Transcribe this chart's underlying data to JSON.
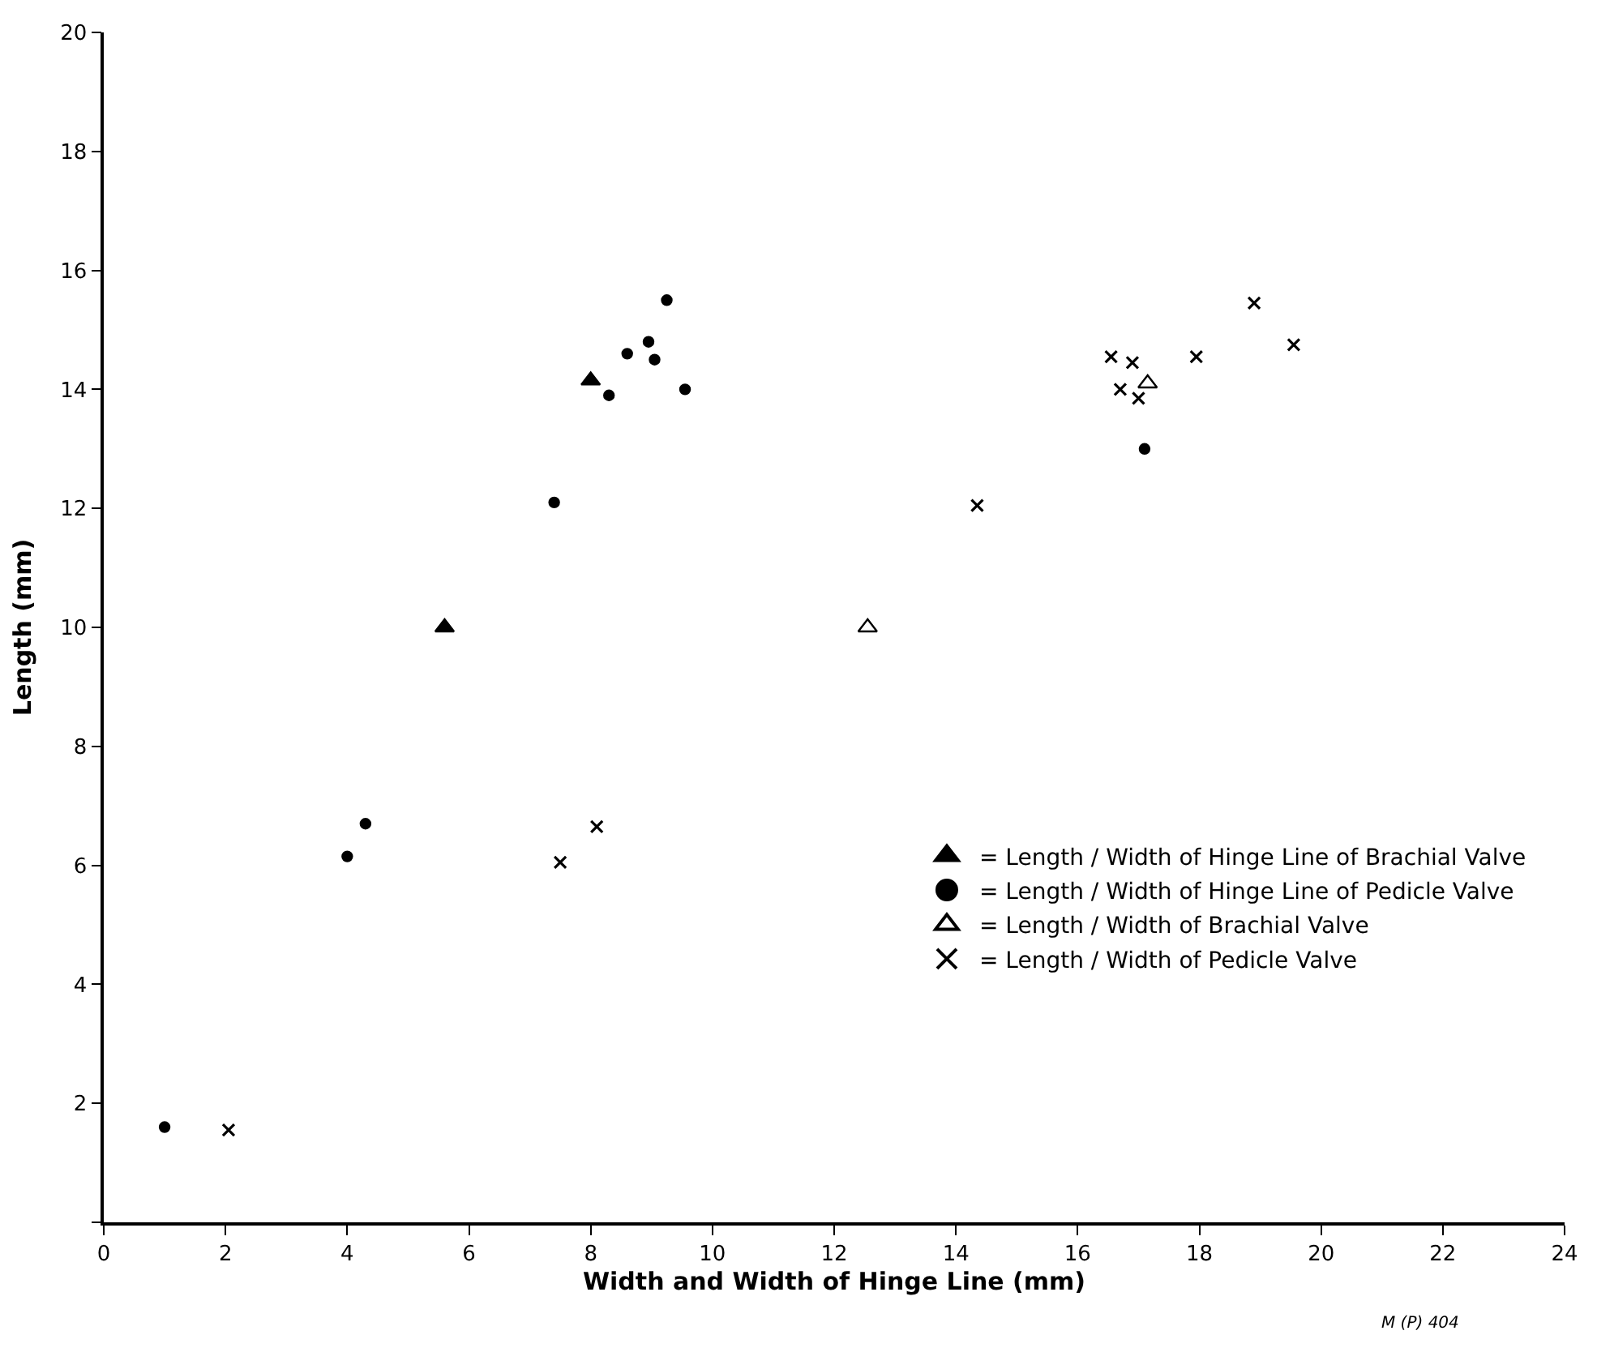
{
  "chart_data": {
    "type": "scatter",
    "xlabel": "Width and Width of Hinge Line (mm)",
    "ylabel": "Length (mm)",
    "xlim": [
      0,
      24
    ],
    "xticks": [
      0,
      2,
      4,
      6,
      8,
      10,
      12,
      14,
      16,
      18,
      20,
      22,
      24
    ],
    "ylim": [
      0,
      20
    ],
    "yticks": [
      {
        "value": 0,
        "label": null
      },
      2,
      4,
      6,
      8,
      10,
      12,
      14,
      16,
      18,
      20
    ],
    "legend": "bottom right",
    "series": [
      {
        "name": "= Length / Width of Hinge Line of Brachial Valve",
        "color": "#000000",
        "marker": "triangle",
        "x": [
          5.6,
          8.0
        ],
        "values": [
          10.0,
          14.15
        ]
      },
      {
        "name": "= Length / Width of Hinge Line of Pedicle Valve",
        "color": "#000000",
        "marker": "circle",
        "x": [
          1.0,
          4.0,
          4.3,
          7.4,
          8.3,
          8.6,
          8.95,
          9.05,
          9.25,
          9.55,
          17.1
        ],
        "values": [
          1.6,
          6.15,
          6.7,
          12.1,
          13.9,
          14.6,
          14.8,
          14.5,
          15.5,
          14.0,
          13.0
        ]
      },
      {
        "name": "= Length / Width of Brachial Valve",
        "color": "#ffffff",
        "marker": "triangle",
        "x": [
          12.55,
          17.15
        ],
        "values": [
          10.0,
          14.1
        ]
      },
      {
        "name": "= Length / Width of Pedicle Valve",
        "color": "#000000",
        "marker": "cross",
        "x": [
          2.05,
          7.5,
          8.1,
          14.35,
          16.55,
          16.9,
          16.7,
          17.0,
          17.95,
          18.9,
          19.55
        ],
        "values": [
          1.55,
          6.05,
          6.65,
          12.05,
          14.55,
          14.45,
          14.0,
          13.85,
          14.55,
          15.45,
          14.75
        ]
      }
    ],
    "annotations": [
      "M (P) 404"
    ]
  }
}
